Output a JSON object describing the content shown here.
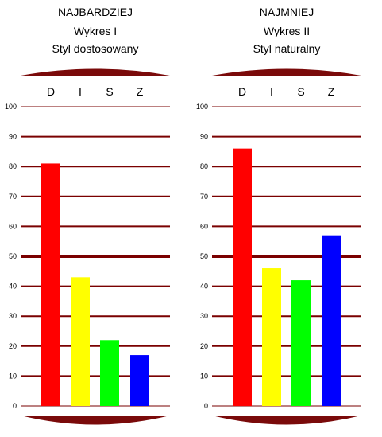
{
  "colors": {
    "grid": "#7a0000",
    "cap": "#7a0a0a",
    "D": "#ff0000",
    "I": "#ffff00",
    "S": "#00ff00",
    "Z": "#0000ff"
  },
  "chart_data": [
    {
      "type": "bar",
      "title_lines": [
        "NAJBARDZIEJ",
        "Wykres I",
        "Styl dostosowany"
      ],
      "categories": [
        "D",
        "I",
        "S",
        "Z"
      ],
      "values": [
        81,
        43,
        22,
        17
      ],
      "ylim": [
        0,
        100
      ],
      "yticks": [
        "0",
        "10",
        "20",
        "30",
        "40",
        "50",
        "60",
        "70",
        "80",
        "90",
        "100"
      ],
      "xlabel": "",
      "ylabel": "",
      "grid": true,
      "emphasized_gridline": 50
    },
    {
      "type": "bar",
      "title_lines": [
        "NAJMNIEJ",
        "Wykres II",
        "Styl naturalny"
      ],
      "categories": [
        "D",
        "I",
        "S",
        "Z"
      ],
      "values": [
        86,
        46,
        42,
        57
      ],
      "ylim": [
        0,
        100
      ],
      "yticks": [
        "0",
        "10",
        "20",
        "30",
        "40",
        "50",
        "60",
        "70",
        "80",
        "90",
        "100"
      ],
      "xlabel": "",
      "ylabel": "",
      "grid": true,
      "emphasized_gridline": 50
    }
  ]
}
